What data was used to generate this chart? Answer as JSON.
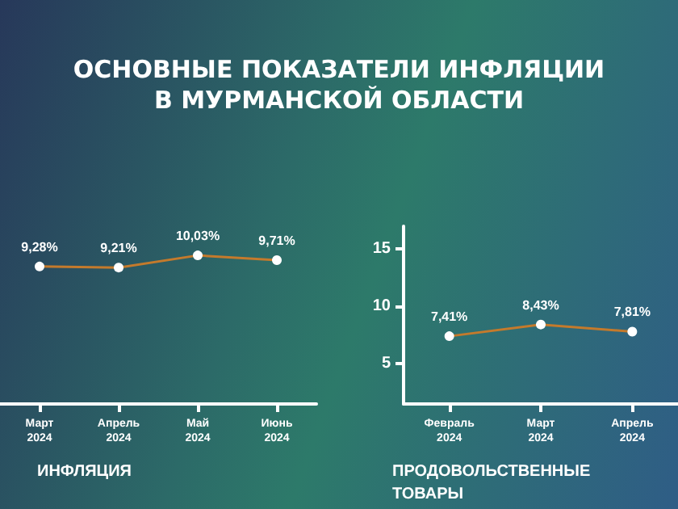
{
  "chart_data": [
    {
      "type": "line",
      "title": "ОСНОВНЫЕ ПОКАЗАТЕЛИ ИНФЛЯЦИИ В МУРМАНСКОЙ ОБЛАСТИ",
      "xlabel": "ИНФЛЯЦИЯ",
      "categories": [
        "Март 2024",
        "Апрель 2024",
        "Май 2024",
        "Июнь 2024"
      ],
      "series": [
        {
          "color": "#c47a2c",
          "values": [
            9.28,
            9.21,
            10.03,
            9.71
          ],
          "value_labels": [
            "9,28%",
            "9,21%",
            "10,03%",
            "9,71%"
          ]
        }
      ],
      "tick_labels": "x",
      "marker": "circle",
      "line_style": "solid",
      "grid": false
    },
    {
      "type": "line",
      "xlabel": "ПРОДОВОЛЬСТВЕННЫЕ ТОВАРЫ",
      "categories": [
        "Февраль 2024",
        "Март 2024",
        "Апрель 2024"
      ],
      "series": [
        {
          "color": "#c47a2c",
          "values": [
            7.41,
            8.43,
            7.81
          ],
          "value_labels": [
            "7,41%",
            "8,43%",
            "7,81%"
          ]
        }
      ],
      "ylim": [
        1.5,
        17
      ],
      "yticks": [
        5,
        10,
        15
      ],
      "marker": "circle",
      "line_style": "solid",
      "grid": false
    }
  ]
}
